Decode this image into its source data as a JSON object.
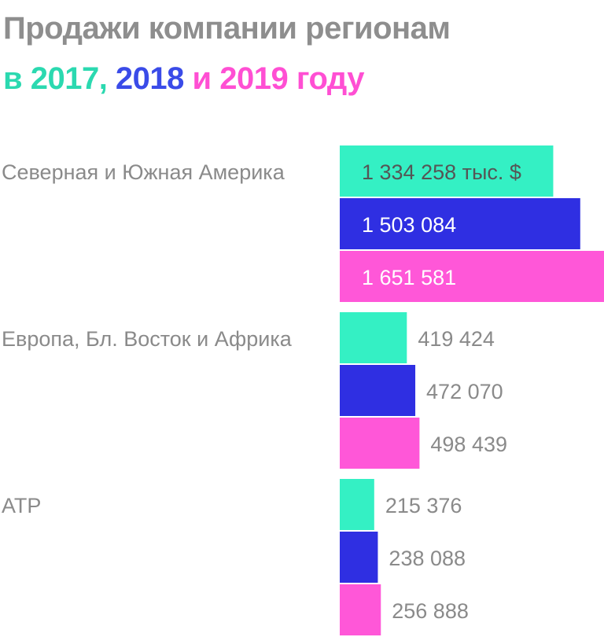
{
  "title_line1": "Продажи компании регионам",
  "title_line2": {
    "prefix": "в ",
    "y2017": "2017",
    "comma": ", ",
    "y2018": "2018",
    "mid": " и ",
    "y2019": "2019",
    "suffix": " году"
  },
  "colors": {
    "title_gray": "#8e8e8e",
    "s2017": "#34f0c4",
    "s2018": "#2f2fe2",
    "s2019": "#ff57d8",
    "year2017_text": "#2bd9b0",
    "year2018_text": "#3a4be8",
    "year2019_text": "#ff4fd3",
    "label_gray": "#8a8a8a",
    "inside_dark": "#555555",
    "inside_light": "#ffffff"
  },
  "chart_data": {
    "type": "bar",
    "orientation": "horizontal",
    "categories": [
      "Северная и Южная Америка",
      "Европа, Бл. Восток и Африка",
      "АТР"
    ],
    "series": [
      {
        "name": "2017",
        "values": [
          1334258,
          419424,
          215376
        ],
        "labels": [
          "1 334 258 тыс. $",
          "419 424",
          "215 376"
        ]
      },
      {
        "name": "2018",
        "values": [
          1503084,
          472070,
          238088
        ],
        "labels": [
          "1 503 084",
          "472 070",
          "238 088"
        ]
      },
      {
        "name": "2019",
        "values": [
          1651581,
          498439,
          256888
        ],
        "labels": [
          "1 651 581",
          "498 439",
          "256 888"
        ]
      }
    ],
    "xlim": [
      0,
      1651581
    ],
    "grid": false,
    "legend": "title"
  }
}
